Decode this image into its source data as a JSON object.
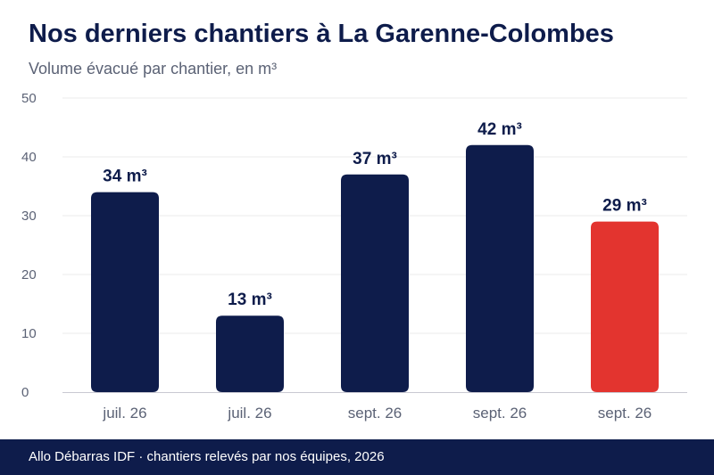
{
  "header": {
    "title": "Nos derniers chantiers à La Garenne-Colombes",
    "subtitle": "Volume évacué par chantier, en m³"
  },
  "footer": {
    "text": "Allo Débarras IDF · chantiers relevés par nos équipes, 2026"
  },
  "colors": {
    "bar": "#0e1c4b",
    "highlight": "#e3342f",
    "grid": "#ebebeb",
    "axis_text": "#5b6275"
  },
  "chart_data": {
    "type": "bar",
    "categories": [
      "juil. 26",
      "juil. 26",
      "sept. 26",
      "sept. 26",
      "sept. 26"
    ],
    "values": [
      34,
      13,
      37,
      42,
      29
    ],
    "data_labels": [
      "34 m³",
      "13 m³",
      "37 m³",
      "42 m³",
      "29 m³"
    ],
    "highlighted_index": 4,
    "yticks": [
      "0",
      "10",
      "20",
      "30",
      "40",
      "50"
    ],
    "ylim": [
      0,
      50
    ],
    "grid": true,
    "legend": "none"
  }
}
